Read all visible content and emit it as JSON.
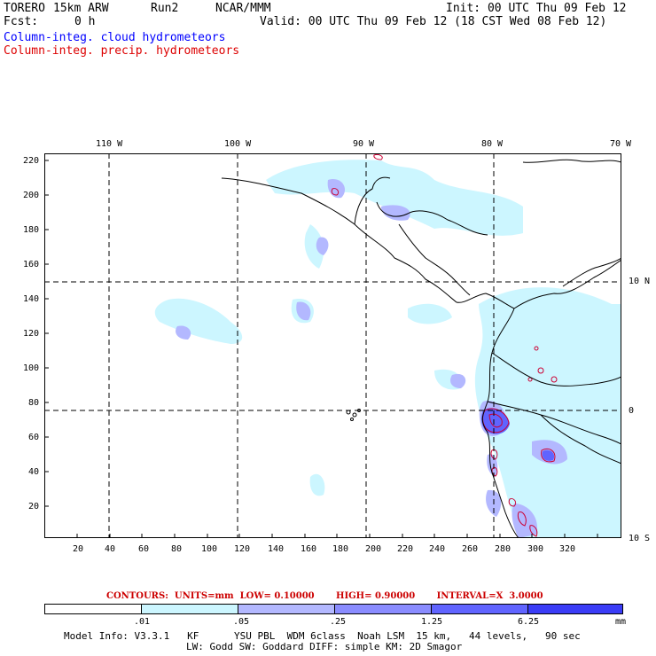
{
  "header": {
    "model": "TORERO",
    "grid": "15km ARW",
    "run": "Run2",
    "org": "NCAR/MMM",
    "init": "Init: 00 UTC Thu 09 Feb 12",
    "fcst_label": "Fcst:",
    "fcst_value": "0 h",
    "valid": "Valid: 00 UTC Thu 09 Feb 12 (18 CST Wed 08 Feb 12)",
    "field_cloud": "Column-integ. cloud hydrometeors",
    "field_precip": "Column-integ. precip. hydrometeors"
  },
  "map": {
    "top_lon_labels": [
      "110 W",
      "100 W",
      "90 W",
      "80 W",
      "70 W"
    ],
    "right_lat_labels": [
      "10 N",
      "0",
      "10 S"
    ],
    "y_ticks": [
      "220",
      "200",
      "180",
      "160",
      "140",
      "120",
      "100",
      "80",
      "60",
      "40",
      "20"
    ],
    "x_ticks": [
      "20",
      "40",
      "60",
      "80",
      "100",
      "120",
      "140",
      "160",
      "180",
      "200",
      "220",
      "240",
      "260",
      "280",
      "300",
      "320"
    ]
  },
  "contours": {
    "text": "CONTOURS:  UNITS=mm  LOW= 0.10000       HIGH= 0.90000       INTERVAL=X  3.0000"
  },
  "colorbar": {
    "labels": [
      ".01",
      ".05",
      ".25",
      "1.25",
      "6.25"
    ],
    "unit": "mm",
    "colors": [
      "#ffffff",
      "#ccf6ff",
      "#b3b8ff",
      "#8a8cff",
      "#6064ff",
      "#3a3cf6"
    ]
  },
  "footer": {
    "line1": "Model Info: V3.3.1   KF      YSU PBL  WDM 6class  Noah LSM  15 km,   44 levels,   90 sec",
    "line2": "LW: Godd SW: Goddard DIFF: simple KM: 2D Smagor"
  }
}
